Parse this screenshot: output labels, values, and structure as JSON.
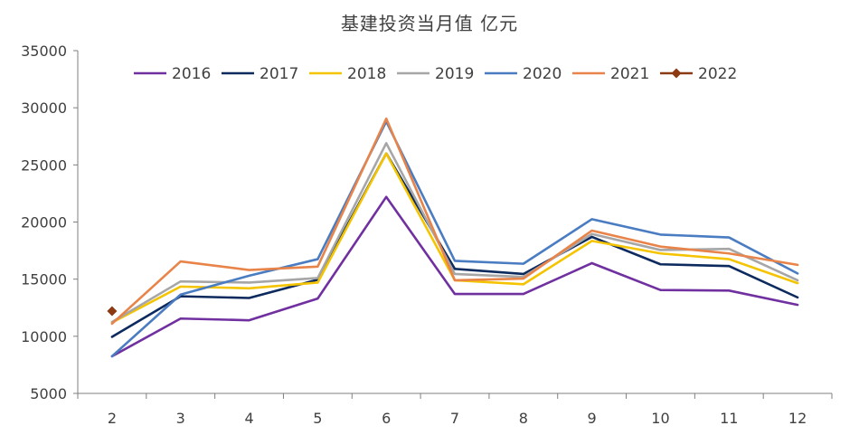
{
  "chart_data": {
    "type": "line",
    "title": "基建投资当月值 亿元",
    "xlabel": "",
    "ylabel": "",
    "categories": [
      "2",
      "3",
      "4",
      "5",
      "6",
      "7",
      "8",
      "9",
      "10",
      "11",
      "12"
    ],
    "ylim": [
      5000,
      35000
    ],
    "yticks": [
      "5000",
      "10000",
      "15000",
      "20000",
      "25000",
      "30000",
      "35000"
    ],
    "grid": false,
    "legend": "top",
    "series": [
      {
        "name": "2016",
        "color": "#7030A0",
        "marker": "none",
        "values": [
          8250,
          11550,
          11400,
          13300,
          22200,
          13700,
          13700,
          16400,
          14050,
          14000,
          12750
        ]
      },
      {
        "name": "2017",
        "color": "#0D2A5E",
        "marker": "none",
        "values": [
          9950,
          13500,
          13350,
          14950,
          26000,
          15900,
          15450,
          18700,
          16300,
          16150,
          13400
        ]
      },
      {
        "name": "2018",
        "color": "#F5C400",
        "marker": "none",
        "values": [
          11200,
          14350,
          14200,
          14700,
          26000,
          14900,
          14550,
          18350,
          17250,
          16750,
          14650
        ]
      },
      {
        "name": "2019",
        "color": "#A6A6A6",
        "marker": "none",
        "values": [
          11250,
          14800,
          14700,
          15100,
          26900,
          15450,
          15200,
          18950,
          17550,
          17650,
          14900
        ]
      },
      {
        "name": "2020",
        "color": "#4A7CC2",
        "marker": "none",
        "values": [
          8250,
          13650,
          15300,
          16750,
          28800,
          16600,
          16350,
          20250,
          18900,
          18650,
          15500
        ]
      },
      {
        "name": "2021",
        "color": "#E8844A",
        "marker": "none",
        "values": [
          11100,
          16550,
          15800,
          16100,
          29050,
          14900,
          15050,
          19250,
          17850,
          17250,
          16250
        ]
      },
      {
        "name": "2022",
        "color": "#8B3A12",
        "marker": "diamond",
        "values": [
          12200,
          null,
          null,
          null,
          null,
          null,
          null,
          null,
          null,
          null,
          null
        ]
      }
    ]
  }
}
